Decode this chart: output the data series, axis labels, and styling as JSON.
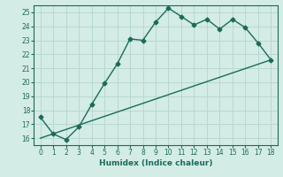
{
  "line1_x": [
    0,
    1,
    2,
    3,
    4,
    5,
    6,
    7,
    8,
    9,
    10,
    11,
    12,
    13,
    14,
    15,
    16,
    17,
    18
  ],
  "line1_y": [
    17.5,
    16.3,
    15.9,
    16.8,
    18.4,
    19.9,
    21.3,
    23.1,
    23.0,
    24.3,
    25.3,
    24.7,
    24.1,
    24.5,
    23.8,
    24.5,
    23.9,
    22.8,
    21.6
  ],
  "line2_x": [
    0,
    18
  ],
  "line2_y": [
    16.0,
    21.6
  ],
  "line_color": "#1a6b5a",
  "bg_color": "#d4ece6",
  "grid_color": "#b8d8d0",
  "xlabel": "Humidex (Indice chaleur)",
  "ylim": [
    15.5,
    25.5
  ],
  "xlim": [
    -0.5,
    18.5
  ],
  "yticks": [
    16,
    17,
    18,
    19,
    20,
    21,
    22,
    23,
    24,
    25
  ],
  "xticks": [
    0,
    1,
    2,
    3,
    4,
    5,
    6,
    7,
    8,
    9,
    10,
    11,
    12,
    13,
    14,
    15,
    16,
    17,
    18
  ],
  "marker": "D",
  "markersize": 2.5,
  "linewidth": 1.0
}
